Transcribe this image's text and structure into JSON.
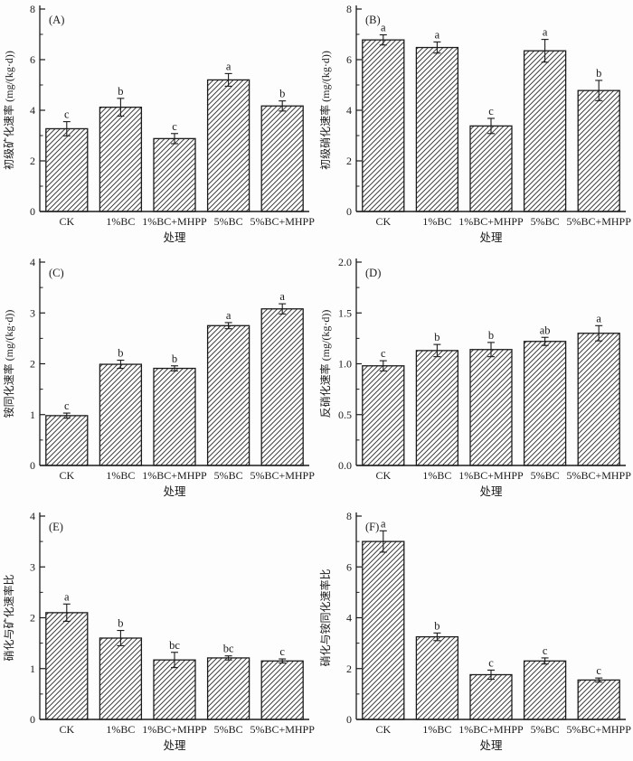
{
  "figure": {
    "background": "#fdfdfd",
    "ink_color": "#1b1b1b",
    "hatch_color": "#2b2b2b",
    "bar_fill": "#fdfdfd",
    "description": "Six-panel hatched bar chart figure, panels (A)-(F)"
  },
  "chart_data": [
    {
      "type": "bar",
      "panel_label": "(A)",
      "ylabel": "初级矿化速率 (mg/(kg·d))",
      "xlabel": "处理",
      "ylim": [
        0,
        8
      ],
      "yticks": [
        0,
        2,
        4,
        6,
        8
      ],
      "minor_step": 1,
      "tick_decimals": 0,
      "grid": "off",
      "legend": "none",
      "categories": [
        "CK",
        "1%BC",
        "1%BC+MHPP",
        "5%BC",
        "5%BC+MHPP"
      ],
      "values": [
        3.27,
        4.12,
        2.88,
        5.2,
        4.17
      ],
      "errors": [
        0.28,
        0.35,
        0.2,
        0.25,
        0.2
      ],
      "sig_letters": [
        "c",
        "b",
        "c",
        "a",
        "b"
      ]
    },
    {
      "type": "bar",
      "panel_label": "(B)",
      "ylabel": "初级硝化速率 (mg/(kg·d))",
      "xlabel": "处理",
      "ylim": [
        0,
        8
      ],
      "yticks": [
        0,
        2,
        4,
        6,
        8
      ],
      "minor_step": 1,
      "tick_decimals": 0,
      "grid": "off",
      "legend": "none",
      "categories": [
        "CK",
        "1%BC",
        "1%BC+MHPP",
        "5%BC",
        "5%BC+MHPP"
      ],
      "values": [
        6.78,
        6.48,
        3.38,
        6.35,
        4.78
      ],
      "errors": [
        0.2,
        0.22,
        0.3,
        0.45,
        0.4
      ],
      "sig_letters": [
        "a",
        "a",
        "c",
        "a",
        "b"
      ]
    },
    {
      "type": "bar",
      "panel_label": "(C)",
      "ylabel": "铵同化速率 (mg/(kg·d))",
      "xlabel": "处理",
      "ylim": [
        0,
        4
      ],
      "yticks": [
        0,
        1,
        2,
        3,
        4
      ],
      "minor_step": 0.5,
      "tick_decimals": 0,
      "grid": "off",
      "legend": "none",
      "categories": [
        "CK",
        "1%BC",
        "1%BC+MHPP",
        "5%BC",
        "5%BC+MHPP"
      ],
      "values": [
        0.98,
        1.99,
        1.91,
        2.75,
        3.08
      ],
      "errors": [
        0.05,
        0.08,
        0.05,
        0.06,
        0.1
      ],
      "sig_letters": [
        "c",
        "b",
        "b",
        "a",
        "a"
      ]
    },
    {
      "type": "bar",
      "panel_label": "(D)",
      "ylabel": "反硝化速率 (mg/(kg·d))",
      "xlabel": "处理",
      "ylim": [
        0,
        2
      ],
      "yticks": [
        0,
        0.5,
        1,
        1.5,
        2
      ],
      "minor_step": 0.25,
      "tick_decimals": 1,
      "grid": "off",
      "legend": "none",
      "categories": [
        "CK",
        "1%BC",
        "1%BC+MHPP",
        "5%BC",
        "5%BC+MHPP"
      ],
      "values": [
        0.98,
        1.13,
        1.14,
        1.22,
        1.3
      ],
      "errors": [
        0.05,
        0.06,
        0.07,
        0.04,
        0.075
      ],
      "sig_letters": [
        "c",
        "b",
        "b",
        "ab",
        "a"
      ]
    },
    {
      "type": "bar",
      "panel_label": "(E)",
      "ylabel": "硝化与矿化速率比",
      "xlabel": "处理",
      "ylim": [
        0,
        4
      ],
      "yticks": [
        0,
        1,
        2,
        3,
        4
      ],
      "minor_step": 0.5,
      "tick_decimals": 0,
      "grid": "off",
      "legend": "none",
      "categories": [
        "CK",
        "1%BC",
        "1%BC+MHPP",
        "5%BC",
        "5%BC+MHPP"
      ],
      "values": [
        2.1,
        1.6,
        1.17,
        1.21,
        1.15
      ],
      "errors": [
        0.17,
        0.15,
        0.15,
        0.04,
        0.04
      ],
      "sig_letters": [
        "a",
        "b",
        "bc",
        "bc",
        "c"
      ]
    },
    {
      "type": "bar",
      "panel_label": "(F)",
      "ylabel": "硝化与铵同化速率比",
      "xlabel": "处理",
      "ylim": [
        0,
        8
      ],
      "yticks": [
        0,
        2,
        4,
        6,
        8
      ],
      "minor_step": 1,
      "tick_decimals": 0,
      "grid": "off",
      "legend": "none",
      "categories": [
        "CK",
        "1%BC",
        "1%BC+MHPP",
        "5%BC",
        "5%BC+MHPP"
      ],
      "values": [
        7.0,
        3.25,
        1.76,
        2.3,
        1.55
      ],
      "errors": [
        0.42,
        0.15,
        0.18,
        0.12,
        0.08
      ],
      "sig_letters": [
        "a",
        "b",
        "c",
        "c",
        "c"
      ]
    }
  ]
}
